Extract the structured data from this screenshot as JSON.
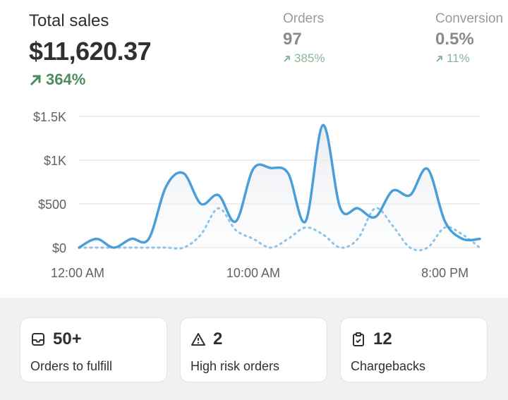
{
  "summary": {
    "total_sales_label": "Total sales",
    "total_sales_value": "$11,620.37",
    "total_sales_change": "364%",
    "orders_label": "Orders",
    "orders_value": "97",
    "orders_change": "385%",
    "conversion_label": "Conversion",
    "conversion_value": "0.5%",
    "conversion_change": "11%"
  },
  "colors": {
    "positive": "#4c8d5f",
    "line": "#4a9fd8",
    "background_bottom": "#f1f1f1"
  },
  "chart_data": {
    "type": "line",
    "y_ticks": [
      "$1.5K",
      "$1K",
      "$500",
      "$0"
    ],
    "x_ticks": [
      "12:00 AM",
      "10:00 AM",
      "8:00 PM"
    ],
    "ylim": [
      0,
      1500
    ],
    "grid": true,
    "series": [
      {
        "style": "solid",
        "values": [
          0,
          100,
          0,
          100,
          100,
          700,
          850,
          500,
          600,
          300,
          900,
          910,
          850,
          300,
          1400,
          450,
          450,
          350,
          650,
          600,
          900,
          300,
          100,
          100
        ]
      },
      {
        "style": "dotted",
        "values": [
          0,
          0,
          0,
          0,
          0,
          0,
          0,
          150,
          450,
          200,
          100,
          0,
          100,
          230,
          150,
          0,
          100,
          450,
          250,
          0,
          0,
          230,
          150,
          0
        ]
      }
    ]
  },
  "cards": [
    {
      "icon": "inbox-icon",
      "value": "50+",
      "label": "Orders to fulfill"
    },
    {
      "icon": "warning-icon",
      "value": "2",
      "label": "High risk orders"
    },
    {
      "icon": "clipboard-icon",
      "value": "12",
      "label": "Chargebacks"
    }
  ]
}
